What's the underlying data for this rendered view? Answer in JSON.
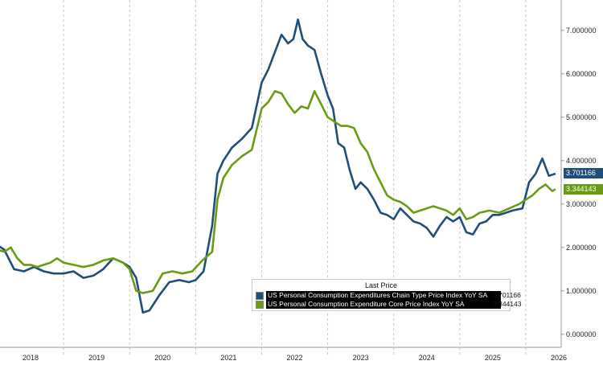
{
  "chart_data": {
    "type": "line",
    "title": "",
    "xlabel": "",
    "ylabel": "",
    "x_ticks": [
      "2018",
      "2019",
      "2020",
      "2021",
      "2022",
      "2023",
      "2024",
      "2025",
      "2026"
    ],
    "y_ticks": [
      "0.000000",
      "1.000000",
      "2.000000",
      "3.000000",
      "4.000000",
      "5.000000",
      "6.000000",
      "7.000000"
    ],
    "ylim": [
      -0.3,
      7.7
    ],
    "xlim": [
      2018.0,
      2026.5
    ],
    "grid": "vertical dashed",
    "legend_title": "Last Price",
    "series": [
      {
        "name": "US Personal Consumption Expenditures Chain Type Price Index YoY SA",
        "last": "3.701166",
        "color": "#1f4e79",
        "points": [
          [
            2018.0,
            2.05
          ],
          [
            2018.1,
            1.95
          ],
          [
            2018.25,
            1.5
          ],
          [
            2018.4,
            1.45
          ],
          [
            2018.55,
            1.55
          ],
          [
            2018.7,
            1.45
          ],
          [
            2018.85,
            1.4
          ],
          [
            2019.0,
            1.4
          ],
          [
            2019.15,
            1.45
          ],
          [
            2019.3,
            1.3
          ],
          [
            2019.45,
            1.35
          ],
          [
            2019.6,
            1.5
          ],
          [
            2019.75,
            1.75
          ],
          [
            2019.9,
            1.65
          ],
          [
            2020.0,
            1.55
          ],
          [
            2020.1,
            1.3
          ],
          [
            2020.2,
            0.5
          ],
          [
            2020.3,
            0.55
          ],
          [
            2020.45,
            0.9
          ],
          [
            2020.6,
            1.2
          ],
          [
            2020.75,
            1.25
          ],
          [
            2020.9,
            1.2
          ],
          [
            2021.0,
            1.25
          ],
          [
            2021.12,
            1.45
          ],
          [
            2021.25,
            2.5
          ],
          [
            2021.33,
            3.7
          ],
          [
            2021.42,
            4.0
          ],
          [
            2021.55,
            4.3
          ],
          [
            2021.7,
            4.5
          ],
          [
            2021.85,
            4.75
          ],
          [
            2022.0,
            5.8
          ],
          [
            2022.1,
            6.1
          ],
          [
            2022.2,
            6.5
          ],
          [
            2022.3,
            6.9
          ],
          [
            2022.4,
            6.7
          ],
          [
            2022.48,
            6.8
          ],
          [
            2022.55,
            7.25
          ],
          [
            2022.62,
            6.8
          ],
          [
            2022.7,
            6.65
          ],
          [
            2022.8,
            6.55
          ],
          [
            2022.9,
            6.0
          ],
          [
            2023.0,
            5.5
          ],
          [
            2023.08,
            5.2
          ],
          [
            2023.16,
            4.4
          ],
          [
            2023.25,
            4.3
          ],
          [
            2023.33,
            3.8
          ],
          [
            2023.42,
            3.35
          ],
          [
            2023.5,
            3.5
          ],
          [
            2023.6,
            3.35
          ],
          [
            2023.7,
            3.1
          ],
          [
            2023.8,
            2.8
          ],
          [
            2023.9,
            2.75
          ],
          [
            2024.0,
            2.65
          ],
          [
            2024.1,
            2.9
          ],
          [
            2024.2,
            2.75
          ],
          [
            2024.3,
            2.6
          ],
          [
            2024.4,
            2.55
          ],
          [
            2024.5,
            2.45
          ],
          [
            2024.6,
            2.25
          ],
          [
            2024.7,
            2.5
          ],
          [
            2024.8,
            2.7
          ],
          [
            2024.9,
            2.6
          ],
          [
            2025.0,
            2.7
          ],
          [
            2025.1,
            2.35
          ],
          [
            2025.2,
            2.3
          ],
          [
            2025.3,
            2.55
          ],
          [
            2025.4,
            2.6
          ],
          [
            2025.5,
            2.75
          ],
          [
            2025.6,
            2.75
          ],
          [
            2025.7,
            2.8
          ],
          [
            2025.8,
            2.85
          ],
          [
            2025.95,
            2.9
          ],
          [
            2026.05,
            3.5
          ],
          [
            2026.15,
            3.7
          ],
          [
            2026.25,
            4.05
          ],
          [
            2026.35,
            3.65
          ],
          [
            2026.45,
            3.7
          ]
        ]
      },
      {
        "name": "US Personal Consumption Expenditure Core Price Index YoY SA",
        "last": "3.344143",
        "color": "#6a9c12",
        "points": [
          [
            2018.0,
            1.95
          ],
          [
            2018.1,
            1.9
          ],
          [
            2018.2,
            2.0
          ],
          [
            2018.3,
            1.75
          ],
          [
            2018.4,
            1.6
          ],
          [
            2018.5,
            1.6
          ],
          [
            2018.6,
            1.55
          ],
          [
            2018.7,
            1.6
          ],
          [
            2018.8,
            1.65
          ],
          [
            2018.9,
            1.75
          ],
          [
            2019.0,
            1.65
          ],
          [
            2019.15,
            1.6
          ],
          [
            2019.3,
            1.55
          ],
          [
            2019.45,
            1.6
          ],
          [
            2019.6,
            1.7
          ],
          [
            2019.75,
            1.75
          ],
          [
            2019.9,
            1.65
          ],
          [
            2020.0,
            1.5
          ],
          [
            2020.1,
            1.0
          ],
          [
            2020.2,
            0.95
          ],
          [
            2020.35,
            1.0
          ],
          [
            2020.5,
            1.4
          ],
          [
            2020.65,
            1.45
          ],
          [
            2020.8,
            1.4
          ],
          [
            2020.95,
            1.45
          ],
          [
            2021.1,
            1.7
          ],
          [
            2021.25,
            1.9
          ],
          [
            2021.33,
            3.1
          ],
          [
            2021.42,
            3.6
          ],
          [
            2021.55,
            3.9
          ],
          [
            2021.7,
            4.1
          ],
          [
            2021.85,
            4.25
          ],
          [
            2022.0,
            5.2
          ],
          [
            2022.1,
            5.35
          ],
          [
            2022.2,
            5.6
          ],
          [
            2022.3,
            5.55
          ],
          [
            2022.4,
            5.3
          ],
          [
            2022.5,
            5.1
          ],
          [
            2022.6,
            5.25
          ],
          [
            2022.7,
            5.2
          ],
          [
            2022.8,
            5.6
          ],
          [
            2022.9,
            5.3
          ],
          [
            2023.0,
            5.0
          ],
          [
            2023.1,
            4.9
          ],
          [
            2023.2,
            4.8
          ],
          [
            2023.3,
            4.8
          ],
          [
            2023.4,
            4.75
          ],
          [
            2023.5,
            4.4
          ],
          [
            2023.6,
            4.2
          ],
          [
            2023.7,
            3.8
          ],
          [
            2023.8,
            3.5
          ],
          [
            2023.9,
            3.2
          ],
          [
            2024.0,
            3.1
          ],
          [
            2024.1,
            3.05
          ],
          [
            2024.2,
            2.95
          ],
          [
            2024.3,
            2.8
          ],
          [
            2024.4,
            2.85
          ],
          [
            2024.5,
            2.9
          ],
          [
            2024.6,
            2.95
          ],
          [
            2024.7,
            2.9
          ],
          [
            2024.8,
            2.85
          ],
          [
            2024.9,
            2.75
          ],
          [
            2025.0,
            2.9
          ],
          [
            2025.1,
            2.65
          ],
          [
            2025.2,
            2.7
          ],
          [
            2025.3,
            2.8
          ],
          [
            2025.45,
            2.85
          ],
          [
            2025.6,
            2.8
          ],
          [
            2025.75,
            2.9
          ],
          [
            2025.9,
            3.0
          ],
          [
            2026.0,
            3.1
          ],
          [
            2026.1,
            3.2
          ],
          [
            2026.2,
            3.35
          ],
          [
            2026.3,
            3.45
          ],
          [
            2026.4,
            3.3
          ],
          [
            2026.45,
            3.34
          ]
        ]
      }
    ]
  }
}
